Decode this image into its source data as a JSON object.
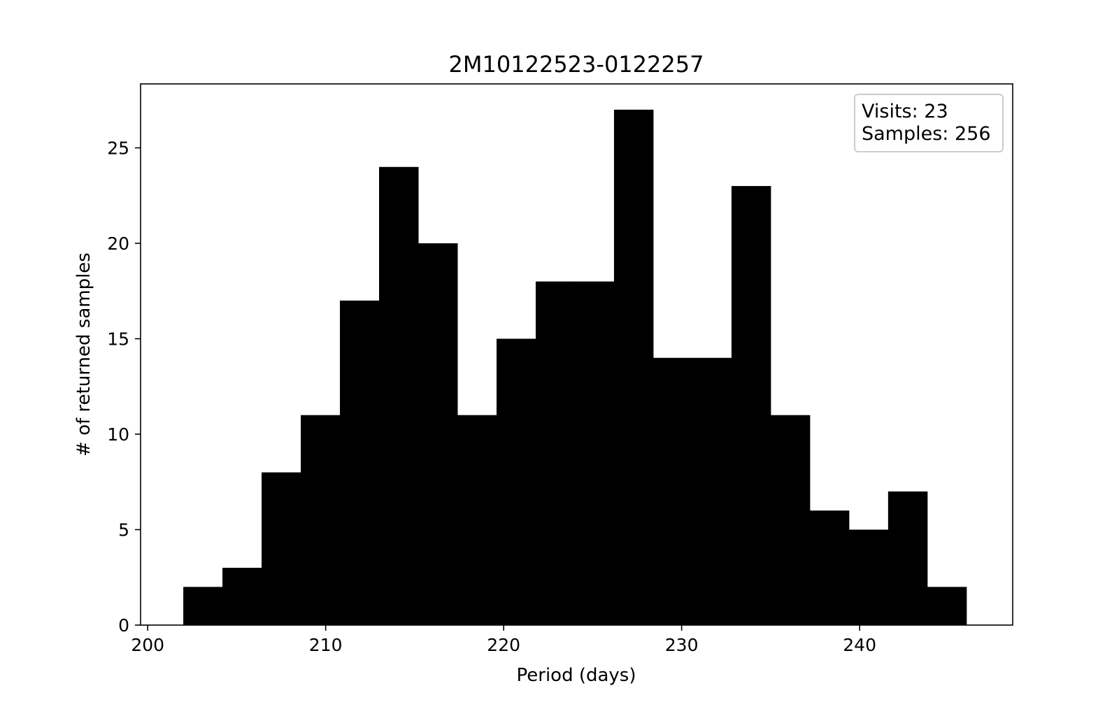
{
  "chart_data": {
    "type": "bar",
    "title": "2M10122523-0122257",
    "xlabel": "Period (days)",
    "ylabel": "# of returned samples",
    "bar_color": "#000000",
    "xlim": [
      199.6,
      248.6
    ],
    "ylim": [
      0,
      28.35
    ],
    "x_ticks": [
      200,
      210,
      220,
      230,
      240
    ],
    "y_ticks": [
      0,
      5,
      10,
      15,
      20,
      25
    ],
    "bin_edges": [
      202.0,
      204.2,
      206.4,
      208.6,
      210.8,
      213.0,
      215.2,
      217.4,
      219.6,
      221.8,
      224.0,
      226.2,
      228.4,
      230.6,
      232.8,
      235.0,
      237.2,
      239.4,
      241.6,
      243.8,
      246.0
    ],
    "values": [
      2,
      3,
      8,
      11,
      17,
      24,
      20,
      11,
      15,
      18,
      18,
      27,
      14,
      14,
      23,
      11,
      6,
      5,
      7,
      2
    ],
    "grid": false,
    "legend_position": "top-right",
    "annotation": {
      "line1": "Visits: 23",
      "line2": "Samples: 256"
    }
  }
}
